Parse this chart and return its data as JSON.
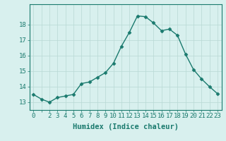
{
  "x": [
    0,
    1,
    2,
    3,
    4,
    5,
    6,
    7,
    8,
    9,
    10,
    11,
    12,
    13,
    14,
    15,
    16,
    17,
    18,
    19,
    20,
    21,
    22,
    23
  ],
  "y": [
    13.5,
    13.2,
    13.0,
    13.3,
    13.4,
    13.5,
    14.2,
    14.3,
    14.6,
    14.9,
    15.5,
    16.6,
    17.5,
    18.55,
    18.5,
    18.1,
    17.6,
    17.7,
    17.3,
    16.1,
    15.1,
    14.5,
    14.0,
    13.55
  ],
  "line_color": "#1a7a6e",
  "marker": "D",
  "marker_size": 2.5,
  "bg_color": "#d8f0ee",
  "grid_color": "#b8d8d4",
  "xlabel": "Humidex (Indice chaleur)",
  "ylabel_ticks": [
    13,
    14,
    15,
    16,
    17,
    18
  ],
  "ylim": [
    12.5,
    19.3
  ],
  "xlim": [
    -0.5,
    23.5
  ],
  "xtick_labels": [
    "0",
    "",
    "2",
    "3",
    "4",
    "5",
    "6",
    "7",
    "8",
    "9",
    "10",
    "11",
    "12",
    "13",
    "14",
    "15",
    "16",
    "17",
    "18",
    "19",
    "20",
    "21",
    "22",
    "23"
  ],
  "title_color": "#1a7a6e",
  "xlabel_fontsize": 7.5,
  "tick_fontsize": 6.5,
  "line_width": 1.0
}
